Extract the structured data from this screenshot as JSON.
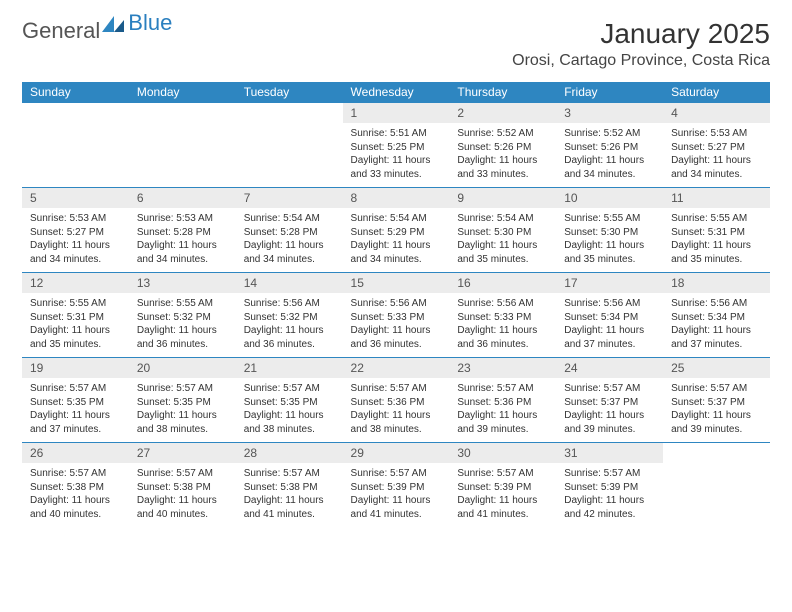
{
  "logo": {
    "general": "General",
    "blue": "Blue"
  },
  "title": "January 2025",
  "location": "Orosi, Cartago Province, Costa Rica",
  "dow": [
    "Sunday",
    "Monday",
    "Tuesday",
    "Wednesday",
    "Thursday",
    "Friday",
    "Saturday"
  ],
  "header_bg": "#2e86c1",
  "header_fg": "#ffffff",
  "daynum_bg": "#ececec",
  "border_color": "#2e86c1",
  "weeks": [
    [
      {
        "empty": true
      },
      {
        "empty": true
      },
      {
        "empty": true
      },
      {
        "n": "1",
        "r": "5:51 AM",
        "s": "5:25 PM",
        "d": "11 hours and 33 minutes."
      },
      {
        "n": "2",
        "r": "5:52 AM",
        "s": "5:26 PM",
        "d": "11 hours and 33 minutes."
      },
      {
        "n": "3",
        "r": "5:52 AM",
        "s": "5:26 PM",
        "d": "11 hours and 34 minutes."
      },
      {
        "n": "4",
        "r": "5:53 AM",
        "s": "5:27 PM",
        "d": "11 hours and 34 minutes."
      }
    ],
    [
      {
        "n": "5",
        "r": "5:53 AM",
        "s": "5:27 PM",
        "d": "11 hours and 34 minutes."
      },
      {
        "n": "6",
        "r": "5:53 AM",
        "s": "5:28 PM",
        "d": "11 hours and 34 minutes."
      },
      {
        "n": "7",
        "r": "5:54 AM",
        "s": "5:28 PM",
        "d": "11 hours and 34 minutes."
      },
      {
        "n": "8",
        "r": "5:54 AM",
        "s": "5:29 PM",
        "d": "11 hours and 34 minutes."
      },
      {
        "n": "9",
        "r": "5:54 AM",
        "s": "5:30 PM",
        "d": "11 hours and 35 minutes."
      },
      {
        "n": "10",
        "r": "5:55 AM",
        "s": "5:30 PM",
        "d": "11 hours and 35 minutes."
      },
      {
        "n": "11",
        "r": "5:55 AM",
        "s": "5:31 PM",
        "d": "11 hours and 35 minutes."
      }
    ],
    [
      {
        "n": "12",
        "r": "5:55 AM",
        "s": "5:31 PM",
        "d": "11 hours and 35 minutes."
      },
      {
        "n": "13",
        "r": "5:55 AM",
        "s": "5:32 PM",
        "d": "11 hours and 36 minutes."
      },
      {
        "n": "14",
        "r": "5:56 AM",
        "s": "5:32 PM",
        "d": "11 hours and 36 minutes."
      },
      {
        "n": "15",
        "r": "5:56 AM",
        "s": "5:33 PM",
        "d": "11 hours and 36 minutes."
      },
      {
        "n": "16",
        "r": "5:56 AM",
        "s": "5:33 PM",
        "d": "11 hours and 36 minutes."
      },
      {
        "n": "17",
        "r": "5:56 AM",
        "s": "5:34 PM",
        "d": "11 hours and 37 minutes."
      },
      {
        "n": "18",
        "r": "5:56 AM",
        "s": "5:34 PM",
        "d": "11 hours and 37 minutes."
      }
    ],
    [
      {
        "n": "19",
        "r": "5:57 AM",
        "s": "5:35 PM",
        "d": "11 hours and 37 minutes."
      },
      {
        "n": "20",
        "r": "5:57 AM",
        "s": "5:35 PM",
        "d": "11 hours and 38 minutes."
      },
      {
        "n": "21",
        "r": "5:57 AM",
        "s": "5:35 PM",
        "d": "11 hours and 38 minutes."
      },
      {
        "n": "22",
        "r": "5:57 AM",
        "s": "5:36 PM",
        "d": "11 hours and 38 minutes."
      },
      {
        "n": "23",
        "r": "5:57 AM",
        "s": "5:36 PM",
        "d": "11 hours and 39 minutes."
      },
      {
        "n": "24",
        "r": "5:57 AM",
        "s": "5:37 PM",
        "d": "11 hours and 39 minutes."
      },
      {
        "n": "25",
        "r": "5:57 AM",
        "s": "5:37 PM",
        "d": "11 hours and 39 minutes."
      }
    ],
    [
      {
        "n": "26",
        "r": "5:57 AM",
        "s": "5:38 PM",
        "d": "11 hours and 40 minutes."
      },
      {
        "n": "27",
        "r": "5:57 AM",
        "s": "5:38 PM",
        "d": "11 hours and 40 minutes."
      },
      {
        "n": "28",
        "r": "5:57 AM",
        "s": "5:38 PM",
        "d": "11 hours and 41 minutes."
      },
      {
        "n": "29",
        "r": "5:57 AM",
        "s": "5:39 PM",
        "d": "11 hours and 41 minutes."
      },
      {
        "n": "30",
        "r": "5:57 AM",
        "s": "5:39 PM",
        "d": "11 hours and 41 minutes."
      },
      {
        "n": "31",
        "r": "5:57 AM",
        "s": "5:39 PM",
        "d": "11 hours and 42 minutes."
      },
      {
        "empty": true
      }
    ]
  ],
  "labels": {
    "sunrise": "Sunrise:",
    "sunset": "Sunset:",
    "daylight": "Daylight:"
  }
}
